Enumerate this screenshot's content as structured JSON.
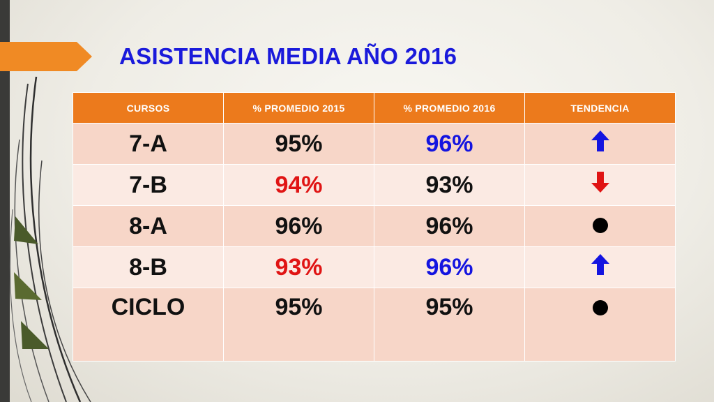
{
  "slide": {
    "title": "ASISTENCIA MEDIA AÑO 2016"
  },
  "colors": {
    "header_bg": "#ec7a1c",
    "row_odd": "#f7d6c8",
    "row_even": "#fbeae3",
    "title": "#1a1adb",
    "up": "#1414e0",
    "down": "#e01414",
    "neutral": "#000000"
  },
  "table": {
    "headers": [
      "CURSOS",
      "%  PROMEDIO 2015",
      "% PROMEDIO 2016",
      "TENDENCIA"
    ],
    "rows": [
      {
        "curso": "7-A",
        "p2015": "95%",
        "p2015_color": "#111111",
        "p2016": "96%",
        "p2016_color": "#1414e0",
        "trend": "up-arrow-icon"
      },
      {
        "curso": "7-B",
        "p2015": "94%",
        "p2015_color": "#e01414",
        "p2016": "93%",
        "p2016_color": "#111111",
        "trend": "down-arrow-icon"
      },
      {
        "curso": "8-A",
        "p2015": "96%",
        "p2015_color": "#111111",
        "p2016": "96%",
        "p2016_color": "#111111",
        "trend": "dot-icon"
      },
      {
        "curso": "8-B",
        "p2015": "93%",
        "p2015_color": "#e01414",
        "p2016": "96%",
        "p2016_color": "#1414e0",
        "trend": "up-arrow-icon"
      },
      {
        "curso": "CICLO",
        "p2015": "95%",
        "p2015_color": "#111111",
        "p2016": "95%",
        "p2016_color": "#111111",
        "trend": "dot-icon"
      }
    ]
  }
}
